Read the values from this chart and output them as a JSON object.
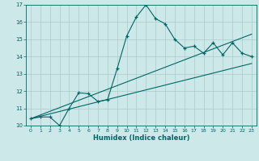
{
  "title": "",
  "xlabel": "Humidex (Indice chaleur)",
  "bg_color": "#cce8e8",
  "grid_color": "#aacccc",
  "line_color": "#006666",
  "xlim": [
    -0.5,
    23.5
  ],
  "ylim": [
    10,
    17
  ],
  "xticks": [
    0,
    1,
    2,
    3,
    4,
    5,
    6,
    7,
    8,
    9,
    10,
    11,
    12,
    13,
    14,
    15,
    16,
    17,
    18,
    19,
    20,
    21,
    22,
    23
  ],
  "yticks": [
    10,
    11,
    12,
    13,
    14,
    15,
    16,
    17
  ],
  "main_x": [
    0,
    1,
    2,
    3,
    4,
    5,
    6,
    7,
    8,
    9,
    10,
    11,
    12,
    13,
    14,
    15,
    16,
    17,
    18,
    19,
    20,
    21,
    22,
    23
  ],
  "main_y": [
    10.4,
    10.5,
    10.5,
    10.0,
    11.0,
    11.9,
    11.85,
    11.4,
    11.5,
    13.3,
    15.2,
    16.3,
    17.0,
    16.2,
    15.9,
    15.0,
    14.5,
    14.6,
    14.2,
    14.8,
    14.1,
    14.8,
    14.2,
    14.0
  ],
  "line2_x": [
    0,
    23
  ],
  "line2_y": [
    10.4,
    15.3
  ],
  "line3_x": [
    0,
    23
  ],
  "line3_y": [
    10.4,
    13.6
  ]
}
